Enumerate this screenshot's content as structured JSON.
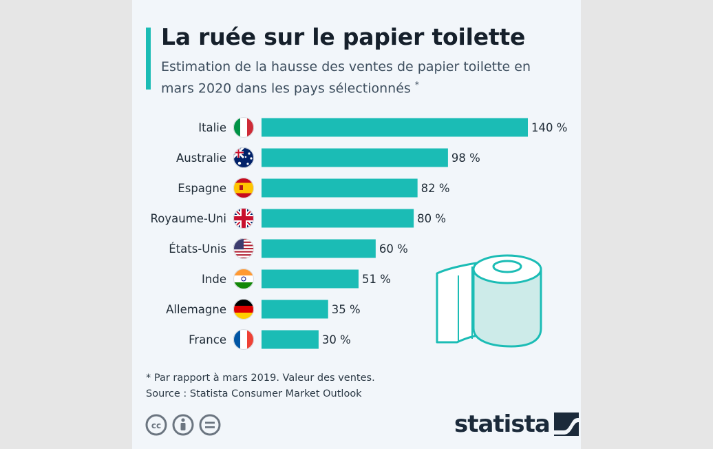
{
  "header": {
    "title": "La ruée sur le papier toilette",
    "subtitle": "Estimation de la hausse des ventes de papier toilette en mars 2020 dans les pays sélectionnés",
    "subtitle_mark": "*"
  },
  "chart_data": {
    "type": "bar",
    "orientation": "horizontal",
    "categories": [
      "Italie",
      "Australie",
      "Espagne",
      "Royaume-Uni",
      "États-Unis",
      "Inde",
      "Allemagne",
      "France"
    ],
    "values": [
      140,
      98,
      82,
      80,
      60,
      51,
      35,
      30
    ],
    "value_labels": [
      "140 %",
      "98 %",
      "82 %",
      "80 %",
      "60 %",
      "51 %",
      "35 %",
      "30 %"
    ],
    "flags": [
      "flag-italy-icon",
      "flag-australia-icon",
      "flag-spain-icon",
      "flag-uk-icon",
      "flag-usa-icon",
      "flag-india-icon",
      "flag-germany-icon",
      "flag-france-icon"
    ],
    "xlim": [
      0,
      140
    ],
    "bar_color": "#1bbcb5",
    "grid": false
  },
  "footnote": {
    "note": "* Par rapport à mars 2019. Valeur des ventes.",
    "source": "Source : Statista Consumer Market Outlook"
  },
  "license_icons": [
    "creative-commons-icon",
    "attribution-icon",
    "no-derivatives-icon"
  ],
  "brand": {
    "name": "statista",
    "logo_icon": "statista-logo-icon"
  },
  "decoration": {
    "illustration": "toilet-paper-roll-icon"
  },
  "colors": {
    "accent": "#1bbcb5",
    "background": "#f2f6fa",
    "text": "#16202b"
  }
}
